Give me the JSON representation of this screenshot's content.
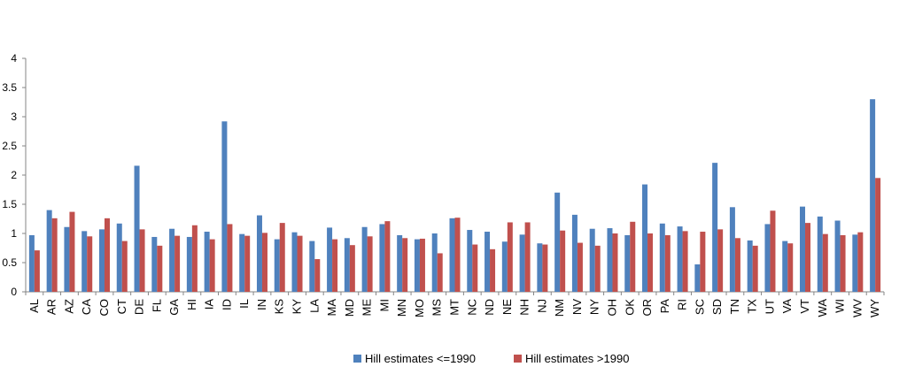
{
  "chart_data": {
    "type": "bar",
    "title": "",
    "xlabel": "",
    "ylabel": "",
    "ylim": [
      0,
      4
    ],
    "yticks": [
      "0",
      "0.5",
      "1",
      "1.5",
      "2",
      "2.5",
      "3",
      "3.5",
      "4"
    ],
    "grid": false,
    "legend_position": "bottom",
    "categories": [
      "AL",
      "AR",
      "AZ",
      "CA",
      "CO",
      "CT",
      "DE",
      "FL",
      "GA",
      "HI",
      "IA",
      "ID",
      "IL",
      "IN",
      "KS",
      "KY",
      "LA",
      "MA",
      "MD",
      "ME",
      "MI",
      "MN",
      "MO",
      "MS",
      "MT",
      "NC",
      "ND",
      "NE",
      "NH",
      "NJ",
      "NM",
      "NV",
      "NY",
      "OH",
      "OK",
      "OR",
      "PA",
      "RI",
      "SC",
      "SD",
      "TN",
      "TX",
      "UT",
      "VA",
      "VT",
      "WA",
      "WI",
      "WV",
      "WY"
    ],
    "series": [
      {
        "name": "Hill estimates <=1990",
        "color": "#4f81bd",
        "values": [
          0.97,
          1.4,
          1.11,
          1.04,
          1.07,
          1.17,
          2.16,
          0.94,
          1.08,
          0.94,
          1.03,
          2.92,
          0.99,
          1.31,
          0.9,
          1.02,
          0.87,
          1.1,
          0.92,
          1.11,
          1.16,
          0.97,
          0.9,
          1.0,
          1.26,
          1.06,
          1.03,
          0.86,
          0.98,
          0.83,
          1.7,
          1.32,
          1.08,
          1.09,
          0.97,
          1.84,
          1.17,
          1.12,
          0.47,
          2.21,
          1.45,
          0.88,
          1.16,
          0.87,
          1.46,
          1.29,
          1.22,
          0.98,
          3.3
        ]
      },
      {
        "name": "Hill estimates >1990",
        "color": "#c0504d",
        "values": [
          0.71,
          1.26,
          1.37,
          0.95,
          1.26,
          0.87,
          1.07,
          0.79,
          0.96,
          1.14,
          0.9,
          1.16,
          0.96,
          1.01,
          1.18,
          0.96,
          0.56,
          0.9,
          0.8,
          0.95,
          1.21,
          0.92,
          0.91,
          0.66,
          1.27,
          0.81,
          0.73,
          1.19,
          1.19,
          0.81,
          1.05,
          0.84,
          0.79,
          1.0,
          1.2,
          1.0,
          0.97,
          1.04,
          1.03,
          1.07,
          0.92,
          0.79,
          1.39,
          0.83,
          1.18,
          0.99,
          0.97,
          1.02,
          1.95
        ]
      }
    ]
  }
}
